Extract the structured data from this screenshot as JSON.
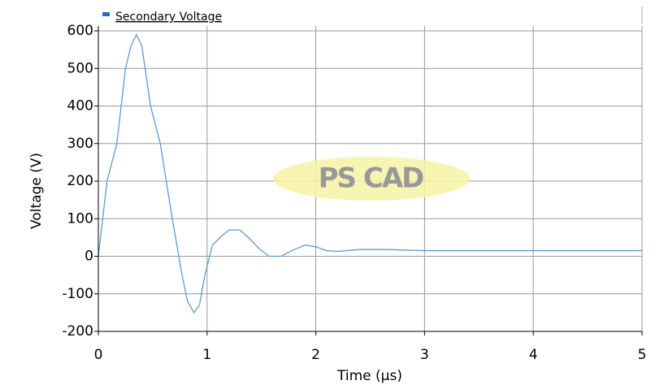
{
  "watermark": "PS CAD",
  "chart_data": {
    "type": "line",
    "x_label": "Time (µs)",
    "y_label": "Voltage (V)",
    "x": [
      0,
      0.04,
      0.08,
      0.17,
      0.25,
      0.3,
      0.35,
      0.4,
      0.48,
      0.57,
      0.68,
      0.77,
      0.82,
      0.88,
      0.93,
      0.98,
      1.05,
      1.12,
      1.2,
      1.3,
      1.38,
      1.48,
      1.57,
      1.68,
      1.78,
      1.9,
      2.0,
      2.1,
      2.2,
      2.4,
      2.65,
      3,
      4,
      5
    ],
    "series": [
      {
        "name": "Secondary Voltage",
        "color": "#5b9bd5",
        "values": [
          0,
          100,
          200,
          300,
          500,
          560,
          590,
          560,
          400,
          300,
          100,
          -50,
          -120,
          -150,
          -130,
          -50,
          30,
          50,
          70,
          70,
          50,
          20,
          0,
          0,
          15,
          30,
          25,
          15,
          13,
          18,
          18,
          15,
          15,
          15
        ]
      }
    ],
    "xlim": [
      0,
      5
    ],
    "xticks": [
      0,
      1,
      2,
      3,
      4,
      5
    ],
    "ylim": [
      -200,
      600
    ],
    "yticks": [
      -200,
      -100,
      0,
      100,
      200,
      300,
      400,
      500,
      600
    ],
    "grid": true
  }
}
